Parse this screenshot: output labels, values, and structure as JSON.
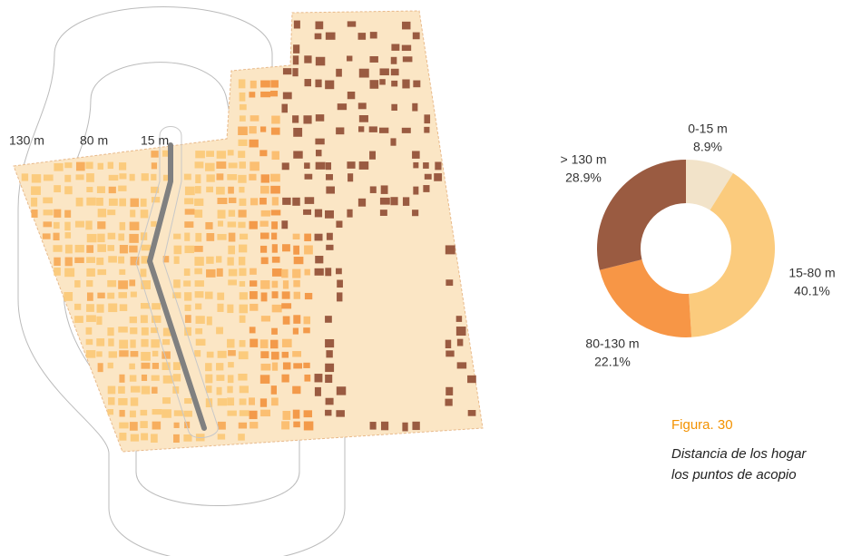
{
  "map": {
    "ring_labels": [
      "130 m",
      "80 m",
      "15 m"
    ]
  },
  "chart_data": {
    "type": "pie",
    "donut": true,
    "categories": [
      "0-15 m",
      "15-80 m",
      "80-130 m",
      "> 130 m"
    ],
    "values": [
      8.9,
      40.1,
      22.1,
      28.9
    ],
    "value_labels": [
      "8.9%",
      "40.1%",
      "22.1%",
      "28.9%"
    ],
    "colors": [
      "#f2e3c9",
      "#fbcb7d",
      "#f79646",
      "#9a5b41"
    ]
  },
  "caption": {
    "number": "Figura.  30",
    "text": [
      "Distancia de los hogar",
      "los puntos de acopio"
    ]
  }
}
